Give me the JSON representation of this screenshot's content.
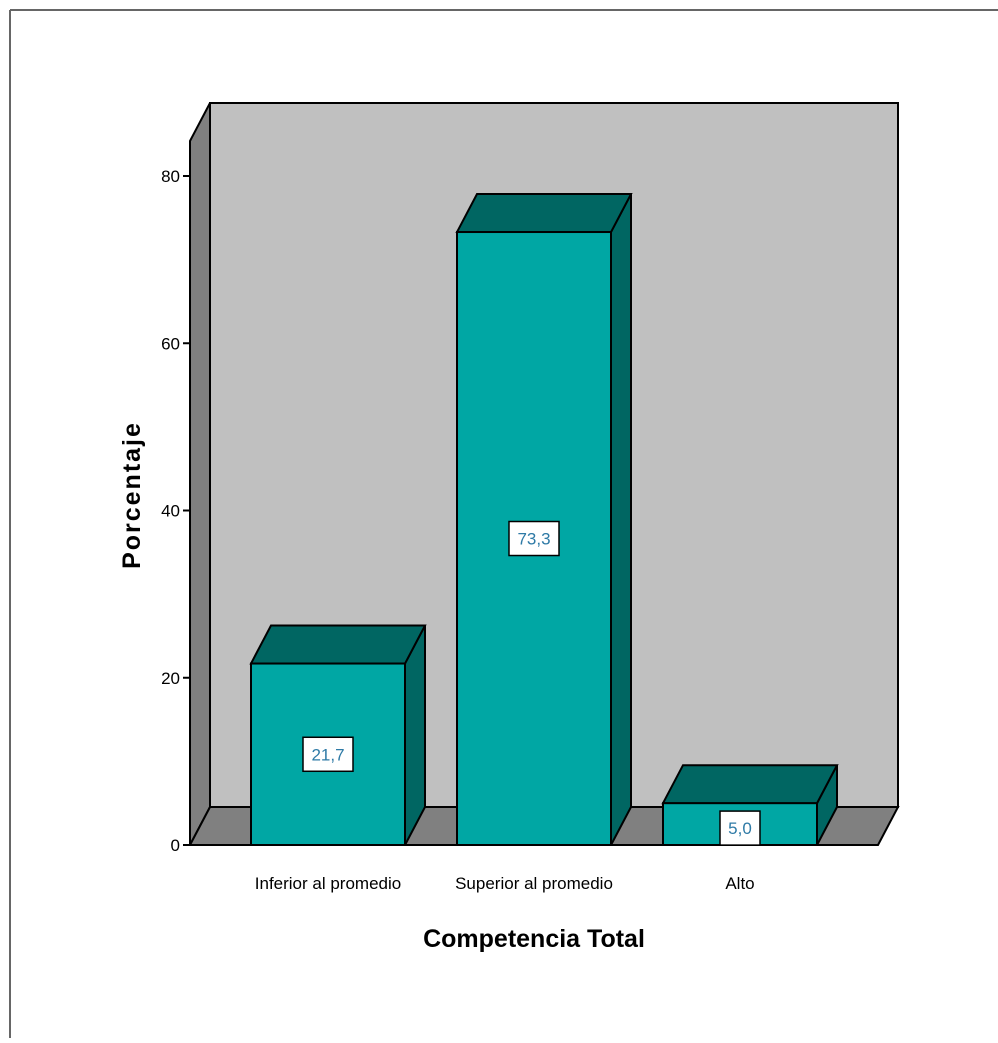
{
  "chart_data": {
    "type": "bar",
    "style": "3d",
    "categories": [
      "Inferior al promedio",
      "Superior al promedio",
      "Alto"
    ],
    "values": [
      21.7,
      73.3,
      5.0
    ],
    "data_labels": [
      "21,7",
      "73,3",
      "5,0"
    ],
    "title": "",
    "xlabel": "Competencia Total",
    "ylabel": "Porcentaje",
    "ylim": [
      0,
      80
    ],
    "yticks": [
      0,
      20,
      40,
      60,
      80
    ],
    "grid": false,
    "legend": "none"
  },
  "colors": {
    "bar_front": "#00A7A4",
    "bar_top": "#006662",
    "bar_side": "#006662",
    "back_wall": "#C0C0C0",
    "side_wall": "#808080",
    "floor": "#808080",
    "data_label_text": "#2E7AA6",
    "frame_border": "#666666"
  }
}
